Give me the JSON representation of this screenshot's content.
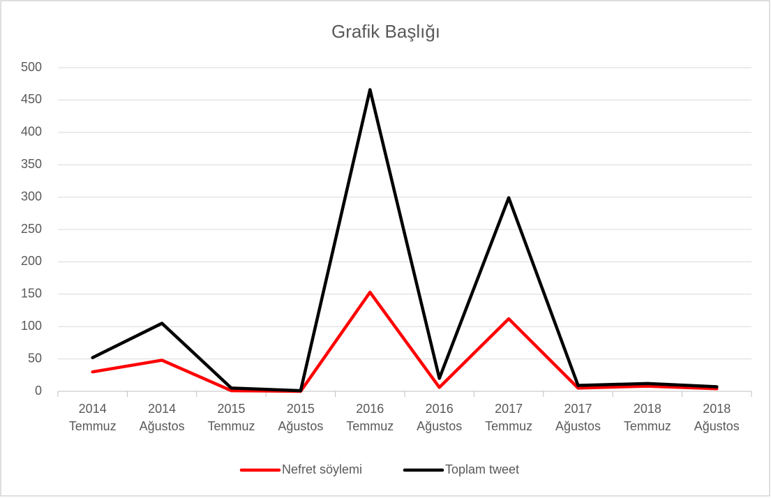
{
  "chart_data": {
    "type": "line",
    "title": "Grafik Başlığı",
    "categories": [
      [
        "2014",
        "Temmuz"
      ],
      [
        "2014",
        "Ağustos"
      ],
      [
        "2015",
        "Temmuz"
      ],
      [
        "2015",
        "Ağustos"
      ],
      [
        "2016",
        "Temmuz"
      ],
      [
        "2016",
        "Ağustos"
      ],
      [
        "2017",
        "Temmuz"
      ],
      [
        "2017",
        "Ağustos"
      ],
      [
        "2018",
        "Temmuz"
      ],
      [
        "2018",
        "Ağustos"
      ]
    ],
    "series": [
      {
        "name": "Nefret söylemi",
        "color": "#ff0000",
        "values": [
          30,
          48,
          1,
          0,
          153,
          6,
          112,
          5,
          8,
          4
        ]
      },
      {
        "name": "Toplam tweet",
        "color": "#000000",
        "values": [
          52,
          105,
          5,
          1,
          466,
          20,
          299,
          9,
          12,
          7
        ]
      }
    ],
    "ylim": [
      0,
      500
    ],
    "yticks": [
      0,
      50,
      100,
      150,
      200,
      250,
      300,
      350,
      400,
      450,
      500
    ],
    "grid": true,
    "legend": "bottom"
  }
}
